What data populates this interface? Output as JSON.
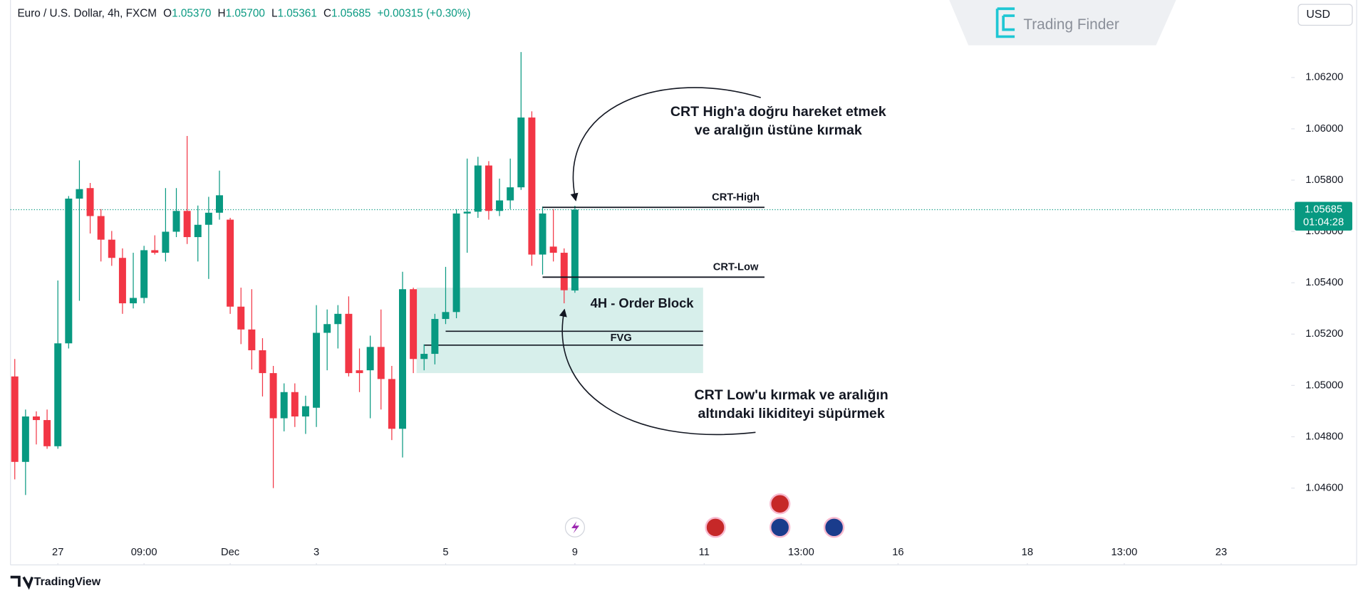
{
  "chart_data": {
    "type": "candlestick",
    "header": {
      "title": "Euro / U.S. Dollar, 4h, FXCM",
      "o": "O",
      "open": "1.05370",
      "h": "H",
      "high": "1.05700",
      "l": "L",
      "low": "1.05361",
      "c": "C",
      "close": "1.05685",
      "change": "+0.00315 (+0.30%)"
    },
    "currency": "USD",
    "brand": "Trading Finder",
    "footer": "TradingView",
    "last_price_label": "1.05685",
    "countdown": "01:04:28",
    "up_color": "#089981",
    "down_color": "#f23645",
    "categories": [
      null,
      null,
      null,
      null,
      null,
      null,
      null,
      null,
      null,
      null,
      null,
      null,
      null,
      null,
      null,
      null,
      null,
      null,
      null,
      null,
      null,
      null,
      null,
      null,
      null,
      null,
      null,
      null,
      null,
      null,
      null,
      null,
      null,
      null,
      null,
      null,
      null,
      null,
      null,
      null,
      null,
      null,
      null,
      null,
      null,
      null,
      null,
      null,
      null,
      null,
      null,
      null,
      null
    ],
    "open": [
      1.05035,
      1.04702,
      1.04879,
      1.04865,
      1.04763,
      1.05164,
      1.05728,
      1.05769,
      1.0566,
      1.05568,
      1.05497,
      1.0532,
      1.05341,
      1.05527,
      1.05517,
      1.05599,
      1.0568,
      1.05578,
      1.05626,
      1.05673,
      1.05646,
      1.05307,
      1.05218,
      1.05137,
      1.05048,
      1.04872,
      1.04974,
      1.04879,
      1.04913,
      1.05205,
      1.05239,
      1.05279,
      1.05059,
      1.05059,
      1.0515,
      1.05025,
      1.04831,
      1.05375,
      1.05103,
      1.05123,
      1.05259,
      1.05286,
      1.0567,
      1.05677,
      1.05857,
      1.0568,
      1.05721,
      1.05772,
      1.06044,
      1.0551,
      1.05541,
      1.05517,
      1.0537
    ],
    "high": [
      1.05103,
      1.04906,
      1.04899,
      1.04906,
      1.05409,
      1.05738,
      1.05877,
      1.05789,
      1.05687,
      1.05602,
      1.05534,
      1.05517,
      1.05544,
      1.05585,
      1.05769,
      1.05769,
      1.05972,
      1.05701,
      1.05735,
      1.05837,
      1.05653,
      1.05381,
      1.05375,
      1.05184,
      1.05076,
      1.05008,
      1.05008,
      1.0496,
      1.05313,
      1.05296,
      1.05313,
      1.05347,
      1.05144,
      1.05194,
      1.05296,
      1.05076,
      1.05443,
      1.05381,
      1.0516,
      1.05279,
      1.05462,
      1.05687,
      1.05884,
      1.05891,
      1.05874,
      1.05806,
      1.05884,
      1.06299,
      1.06068,
      1.05697,
      1.05687,
      1.05534,
      1.057
    ],
    "low": [
      1.04634,
      1.04573,
      1.0477,
      1.04753,
      1.04753,
      1.05144,
      1.0533,
      1.05592,
      1.05483,
      1.05466,
      1.05279,
      1.053,
      1.0532,
      1.0551,
      1.05483,
      1.05578,
      1.05551,
      1.05483,
      1.05415,
      1.05646,
      1.05279,
      1.05161,
      1.05062,
      1.04957,
      1.046,
      1.04821,
      1.04838,
      1.04811,
      1.04838,
      1.05059,
      1.05144,
      1.05035,
      1.04974,
      1.04872,
      1.04906,
      1.04787,
      1.04719,
      1.05048,
      1.05059,
      1.05082,
      1.05239,
      1.05262,
      1.05517,
      1.05653,
      1.05646,
      1.0566,
      1.05687,
      1.05762,
      1.05466,
      1.05432,
      1.05483,
      1.0532,
      1.05361
    ],
    "close": [
      1.04702,
      1.04879,
      1.04865,
      1.04763,
      1.05164,
      1.05728,
      1.05765,
      1.0566,
      1.05568,
      1.05497,
      1.0532,
      1.05341,
      1.05527,
      1.05517,
      1.05599,
      1.0568,
      1.05578,
      1.05626,
      1.05673,
      1.05741,
      1.05307,
      1.05218,
      1.05137,
      1.05048,
      1.04872,
      1.04974,
      1.04879,
      1.04919,
      1.05205,
      1.05239,
      1.05279,
      1.05048,
      1.05048,
      1.0515,
      1.05025,
      1.04831,
      1.05375,
      1.05103,
      1.05123,
      1.05259,
      1.05286,
      1.0567,
      1.05677,
      1.05857,
      1.0568,
      1.05721,
      1.05772,
      1.06044,
      1.0551,
      1.0567,
      1.05517,
      1.05371,
      1.05685
    ],
    "xlim": [
      -0.4,
      118.5
    ],
    "xticks": [
      {
        "value": 4,
        "label": "27"
      },
      {
        "value": 12,
        "label": "09:00"
      },
      {
        "value": 20,
        "label": "Dec"
      },
      {
        "value": 28,
        "label": "3"
      },
      {
        "value": 40,
        "label": "5"
      },
      {
        "value": 52,
        "label": "9"
      },
      {
        "value": 64,
        "label": "11"
      },
      {
        "value": 73,
        "label": "13:00"
      },
      {
        "value": 82,
        "label": "16"
      },
      {
        "value": 94,
        "label": "18"
      },
      {
        "value": 103,
        "label": "13:00"
      },
      {
        "value": 112,
        "label": "23"
      }
    ],
    "ylim": [
      1.04389,
      1.06502
    ],
    "yticks": [
      {
        "value": 1.046,
        "label": "1.04600"
      },
      {
        "value": 1.048,
        "label": "1.04800"
      },
      {
        "value": 1.05,
        "label": "1.05000"
      },
      {
        "value": 1.052,
        "label": "1.05200"
      },
      {
        "value": 1.054,
        "label": "1.05400"
      },
      {
        "value": 1.056,
        "label": "1.05600"
      },
      {
        "value": 1.058,
        "label": "1.05800"
      },
      {
        "value": 1.06,
        "label": "1.06000"
      },
      {
        "value": 1.062,
        "label": "1.06200"
      }
    ],
    "levels": [
      {
        "label": "CRT-High",
        "value": 1.05694,
        "start": 49,
        "end": 69.6
      },
      {
        "label": "CRT-Low",
        "value": 1.05422,
        "start": 49,
        "end": 69.6
      }
    ],
    "zone": {
      "label": "4H - Order Block",
      "top": 1.05381,
      "bottom": 1.05048,
      "start": 37.3,
      "end": 63.9
    },
    "fvg": {
      "label": "FVG",
      "top": 1.05211,
      "bottom": 1.05157,
      "start": 40,
      "end": 63.9
    },
    "notes": [
      {
        "lines": [
          "CRT High'a doğru hareket etmek",
          "ve aralığın üstüne kırmak"
        ]
      },
      {
        "lines": [
          "CRT Low'u kırmak ve aralığın",
          "altındaki likiditeyi süpürmek"
        ]
      }
    ]
  }
}
